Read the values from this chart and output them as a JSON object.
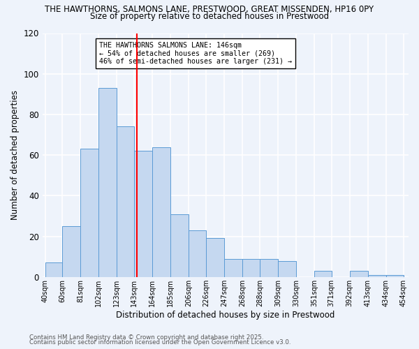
{
  "title_line1": "THE HAWTHORNS, SALMONS LANE, PRESTWOOD, GREAT MISSENDEN, HP16 0PY",
  "title_line2": "Size of property relative to detached houses in Prestwood",
  "xlabel": "Distribution of detached houses by size in Prestwood",
  "ylabel": "Number of detached properties",
  "bar_left_edges": [
    40,
    60,
    81,
    102,
    123,
    143,
    164,
    185,
    206,
    226,
    247,
    268,
    288,
    309,
    330,
    351,
    371,
    392,
    413,
    434
  ],
  "bar_heights": [
    7,
    25,
    63,
    93,
    74,
    62,
    64,
    31,
    23,
    19,
    9,
    9,
    9,
    8,
    0,
    3,
    0,
    3,
    1,
    1
  ],
  "bar_widths": [
    20,
    21,
    21,
    21,
    20,
    21,
    21,
    21,
    20,
    21,
    21,
    20,
    21,
    21,
    21,
    20,
    21,
    21,
    21,
    20
  ],
  "bar_color": "#c5d8f0",
  "bar_edge_color": "#5b9bd5",
  "vline_x": 146,
  "vline_color": "red",
  "annotation_box_text": "THE HAWTHORNS SALMONS LANE: 146sqm\n← 54% of detached houses are smaller (269)\n46% of semi-detached houses are larger (231) →",
  "ylim": [
    0,
    120
  ],
  "yticks": [
    0,
    20,
    40,
    60,
    80,
    100,
    120
  ],
  "xtick_labels": [
    "40sqm",
    "60sqm",
    "81sqm",
    "102sqm",
    "123sqm",
    "143sqm",
    "164sqm",
    "185sqm",
    "206sqm",
    "226sqm",
    "247sqm",
    "268sqm",
    "288sqm",
    "309sqm",
    "330sqm",
    "351sqm",
    "371sqm",
    "392sqm",
    "413sqm",
    "434sqm",
    "454sqm"
  ],
  "xtick_positions": [
    40,
    60,
    81,
    102,
    123,
    143,
    164,
    185,
    206,
    226,
    247,
    268,
    288,
    309,
    330,
    351,
    371,
    392,
    413,
    434,
    454
  ],
  "bg_color": "#eef3fb",
  "grid_color": "#ffffff",
  "footer_line1": "Contains HM Land Registry data © Crown copyright and database right 2025.",
  "footer_line2": "Contains public sector information licensed under the Open Government Licence v3.0.",
  "xlim_min": 37,
  "xlim_max": 460
}
